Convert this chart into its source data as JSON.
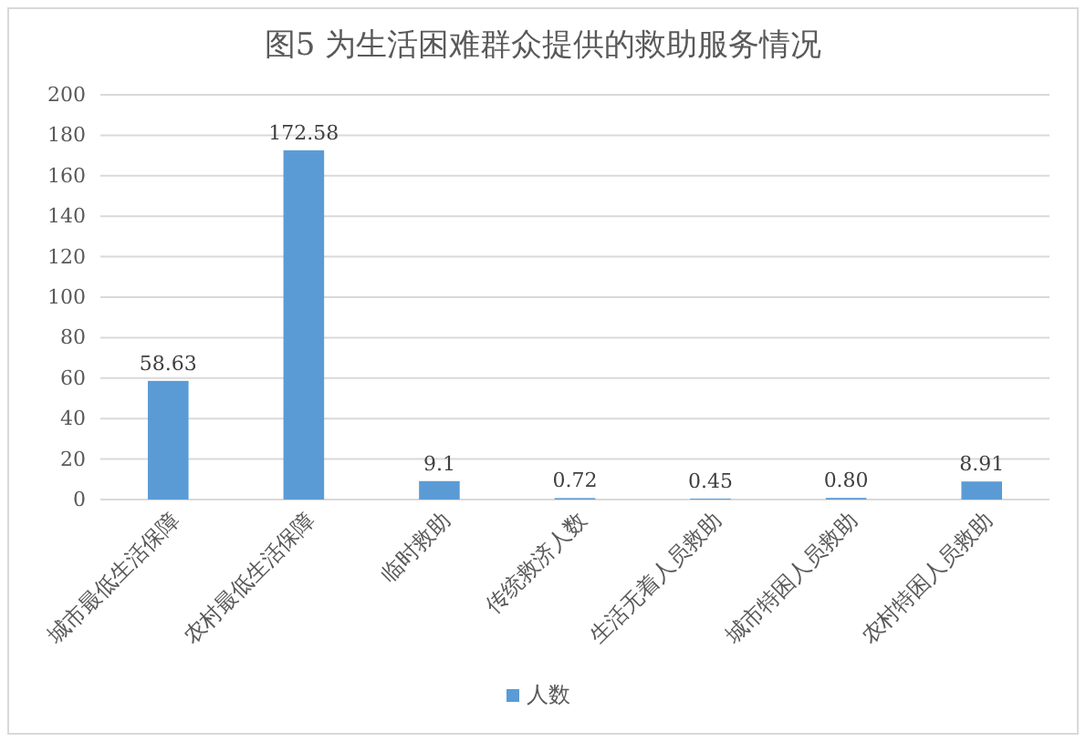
{
  "chart_data": {
    "type": "bar",
    "title": "图5  为生活困难群众提供的救助服务情况",
    "categories": [
      "城市最低生活保障",
      "农村最低生活保障",
      "临时救助",
      "传统救济人数",
      "生活无着人员救助",
      "城市特困人员救助",
      "农村特困人员救助"
    ],
    "series": [
      {
        "name": "人数",
        "color": "#5b9bd5",
        "values": [
          58.63,
          172.58,
          9.1,
          0.72,
          0.45,
          0.8,
          8.91
        ],
        "value_labels": [
          "58.63",
          "172.58",
          "9.1",
          "0.72",
          "0.45",
          "0.80",
          "8.91"
        ]
      }
    ],
    "ylim": [
      0,
      200
    ],
    "yticks": [
      0,
      20,
      40,
      60,
      80,
      100,
      120,
      140,
      160,
      180,
      200
    ],
    "grid": "y",
    "legend": "bottom"
  }
}
